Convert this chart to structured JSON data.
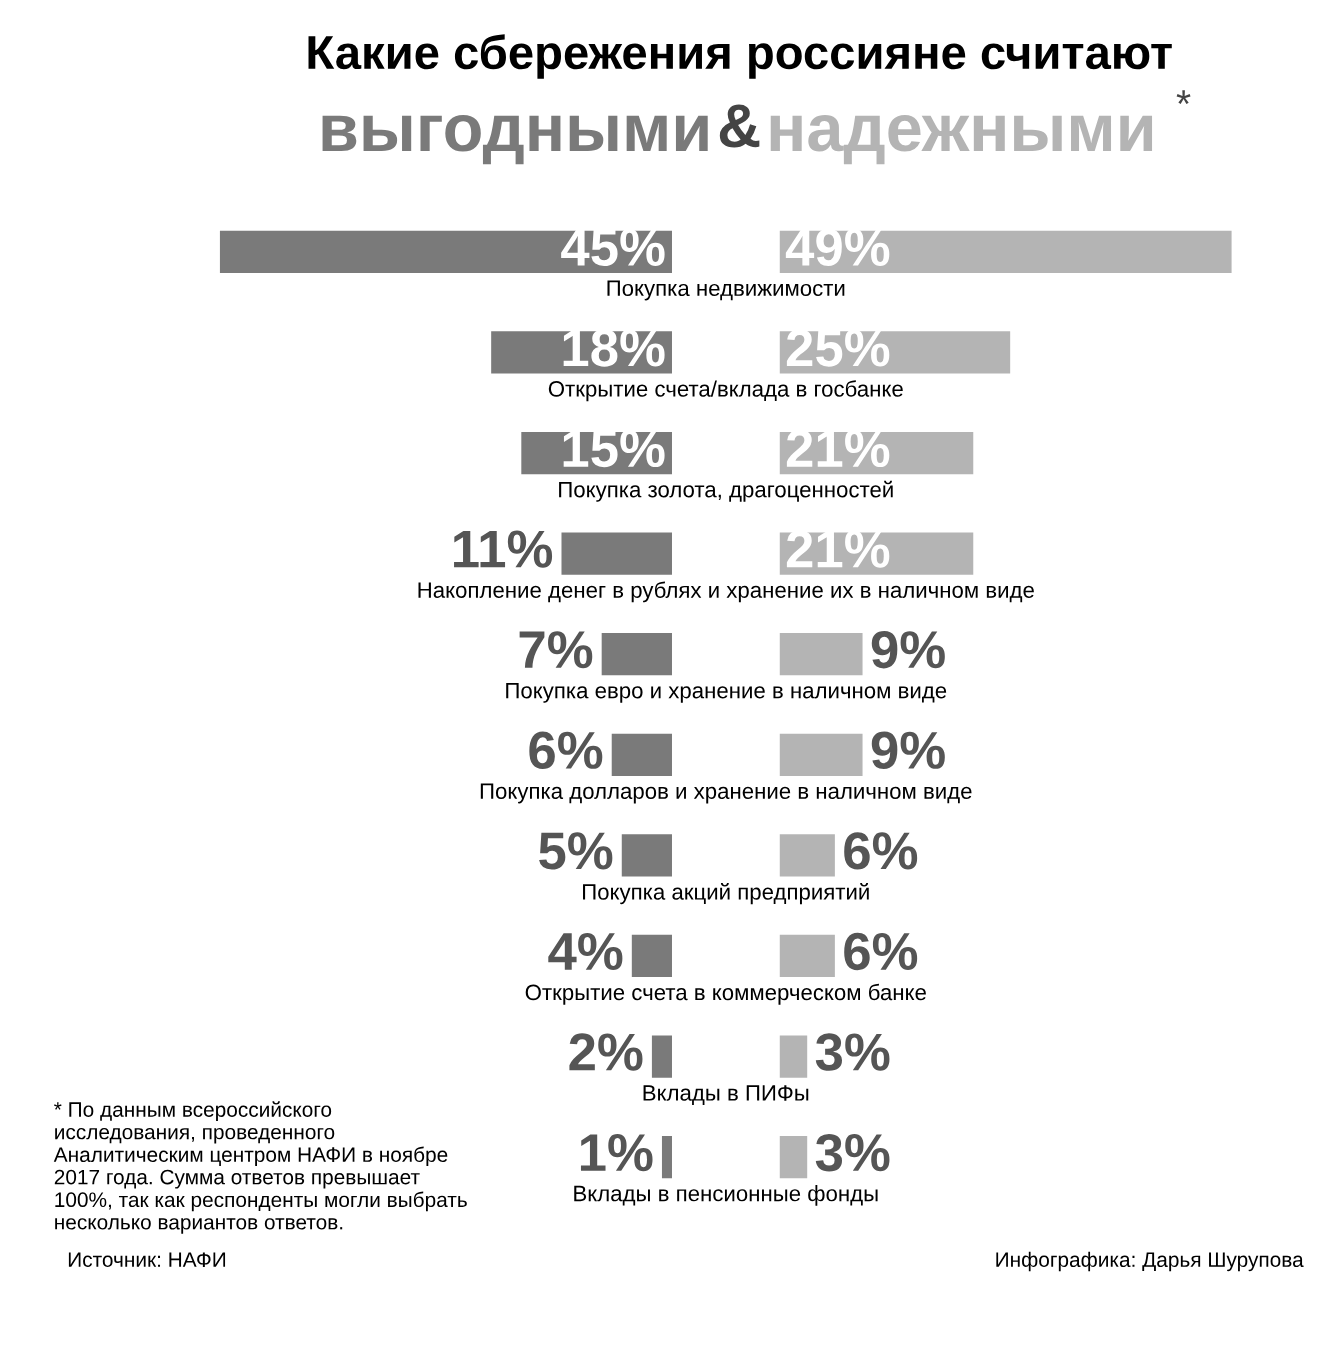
{
  "chart_data": [
    {
      "type": "bar",
      "orientation": "horizontal",
      "title": "Какие сбережения россияне считают",
      "subtitle": "&",
      "legend": "top",
      "categories": [
        "Покупка недвижимости",
        "Открытие счета/вклада в госбанке",
        "Покупка золота, драгоценностей",
        "Накопление денег в рублях и хранение их в наличном виде",
        "Покупка евро и хранение в наличном виде",
        "Покупка долларов и хранение в наличном виде",
        "Покупка акций предприятий",
        "Открытие счета в коммерческом банке",
        "Вклады в ПИФы",
        "Вклады в пенсионные фонды"
      ],
      "series": [
        {
          "name": "выгодными",
          "color": "#7a7a7a",
          "values": [
            45,
            18,
            15,
            11,
            7,
            6,
            5,
            4,
            2,
            1
          ],
          "value_labels": [
            "45%",
            "18%",
            "15%",
            "11%",
            "7%",
            "6%",
            "5%",
            "4%",
            "2%",
            "1%"
          ]
        }
      ],
      "annotations": [
        "*",
        "* По данным всероссийского исследования, проведенного Аналитическим центром НАФИ в ноябре 2017 года. Сумма ответов превышает 100%, так как респонденты могли выбрать несколько вариантов ответов.",
        "Источник: НАФИ",
        "Инфографика: Дарья Шурупова"
      ]
    },
    {
      "type": "bar",
      "orientation": "horizontal",
      "legend": "top",
      "categories": [
        null,
        null,
        null,
        null,
        null,
        null,
        null,
        null,
        null,
        null
      ],
      "series": [
        {
          "name": "надежными",
          "color": "#b4b4b4",
          "values": [
            49,
            25,
            21,
            21,
            9,
            9,
            6,
            6,
            3,
            3
          ],
          "value_labels": [
            "49%",
            "25%",
            "21%",
            "21%",
            "9%",
            "9%",
            "6%",
            "6%",
            "3%",
            "3%"
          ]
        }
      ]
    }
  ]
}
